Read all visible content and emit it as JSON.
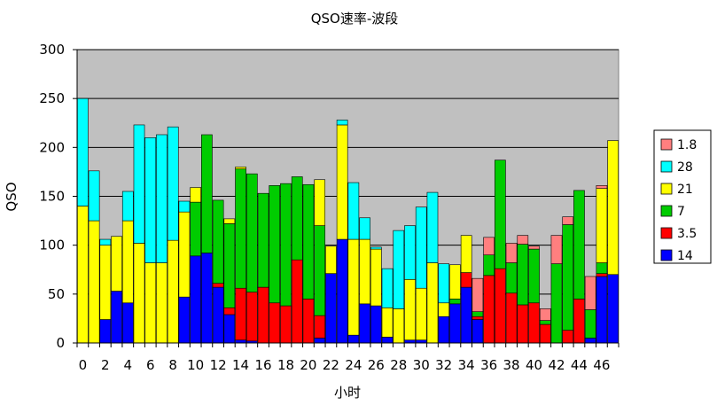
{
  "chart_data": {
    "type": "bar",
    "stacked": true,
    "title": "QSO速率-波段",
    "xlabel": "小时",
    "ylabel": "QSO",
    "ylim": [
      0,
      300
    ],
    "yticks": [
      0,
      50,
      100,
      150,
      200,
      250,
      300
    ],
    "xticklabels": [
      "0",
      "2",
      "4",
      "6",
      "8",
      "10",
      "12",
      "14",
      "16",
      "18",
      "20",
      "22",
      "24",
      "26",
      "28",
      "30",
      "32",
      "34",
      "36",
      "38",
      "40",
      "42",
      "44",
      "46"
    ],
    "grid": true,
    "legend_position": "right",
    "categories": [
      0,
      1,
      2,
      3,
      4,
      5,
      6,
      7,
      8,
      9,
      10,
      11,
      12,
      13,
      14,
      15,
      16,
      17,
      18,
      19,
      20,
      21,
      22,
      23,
      24,
      25,
      26,
      27,
      28,
      29,
      30,
      31,
      32,
      33,
      34,
      35,
      36,
      37,
      38,
      39,
      40,
      41,
      42,
      43,
      44,
      45,
      46,
      47
    ],
    "series": [
      {
        "name": "14",
        "color": "#0000ff",
        "values": [
          0,
          0,
          24,
          53,
          41,
          0,
          0,
          0,
          0,
          47,
          89,
          92,
          57,
          29,
          3,
          2,
          0,
          0,
          0,
          0,
          0,
          5,
          71,
          106,
          8,
          40,
          38,
          6,
          0,
          3,
          3,
          0,
          27,
          40,
          57,
          24,
          0,
          0,
          0,
          0,
          0,
          0,
          0,
          0,
          0,
          5,
          68,
          70
        ]
      },
      {
        "name": "3.5",
        "color": "#ff0000",
        "values": [
          0,
          0,
          0,
          0,
          0,
          0,
          0,
          0,
          0,
          0,
          0,
          0,
          4,
          7,
          53,
          50,
          57,
          41,
          38,
          85,
          45,
          23,
          0,
          0,
          0,
          0,
          0,
          0,
          0,
          0,
          0,
          0,
          0,
          0,
          15,
          3,
          69,
          76,
          51,
          39,
          41,
          19,
          0,
          13,
          45,
          0,
          3,
          0
        ]
      },
      {
        "name": "7",
        "color": "#00cc00",
        "values": [
          0,
          0,
          0,
          0,
          0,
          0,
          0,
          0,
          0,
          0,
          55,
          121,
          85,
          86,
          122,
          121,
          96,
          120,
          125,
          85,
          117,
          92,
          0,
          0,
          0,
          0,
          0,
          0,
          0,
          0,
          0,
          0,
          0,
          5,
          0,
          5,
          21,
          111,
          31,
          62,
          55,
          4,
          81,
          108,
          111,
          29,
          11,
          0
        ]
      },
      {
        "name": "21",
        "color": "#ffff00",
        "values": [
          140,
          125,
          76,
          56,
          84,
          102,
          82,
          82,
          105,
          87,
          15,
          0,
          0,
          5,
          2,
          0,
          0,
          0,
          0,
          0,
          0,
          47,
          28,
          117,
          98,
          66,
          58,
          30,
          35,
          62,
          53,
          82,
          14,
          35,
          38,
          0,
          0,
          0,
          0,
          0,
          0,
          0,
          0,
          0,
          0,
          0,
          76,
          137
        ]
      },
      {
        "name": "28",
        "color": "#00ffff",
        "values": [
          110,
          51,
          6,
          0,
          30,
          121,
          128,
          131,
          116,
          11,
          0,
          0,
          0,
          0,
          0,
          0,
          0,
          0,
          0,
          0,
          0,
          0,
          0,
          5,
          58,
          22,
          2,
          40,
          80,
          55,
          83,
          72,
          40,
          0,
          0,
          0,
          0,
          0,
          0,
          0,
          0,
          0,
          0,
          0,
          0,
          0,
          0,
          0
        ]
      },
      {
        "name": "1.8",
        "color": "#ff7f7f",
        "values": [
          0,
          0,
          0,
          0,
          0,
          0,
          0,
          0,
          0,
          0,
          0,
          0,
          0,
          0,
          0,
          0,
          0,
          0,
          0,
          0,
          0,
          0,
          0,
          0,
          0,
          0,
          0,
          0,
          0,
          0,
          0,
          0,
          0,
          0,
          0,
          34,
          18,
          0,
          20,
          9,
          3,
          12,
          29,
          8,
          0,
          34,
          3,
          0
        ]
      }
    ]
  }
}
